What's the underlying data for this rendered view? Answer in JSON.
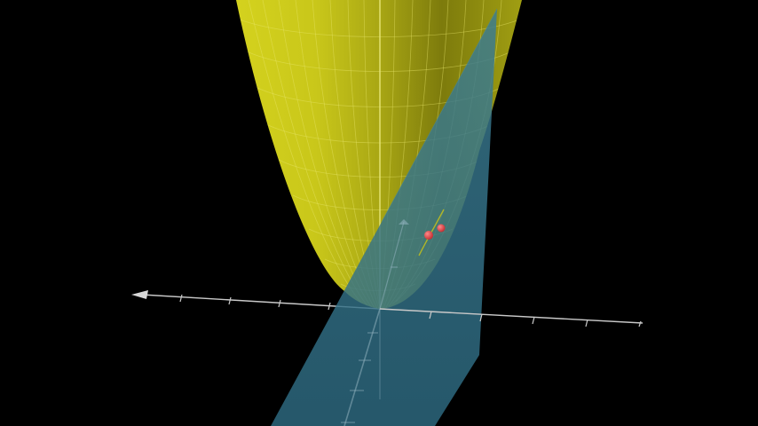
{
  "scene": {
    "background_color": "#000000",
    "surface": {
      "kind": "paraboloid",
      "color": "#c4c21a",
      "mesh_color": "#e8e66a"
    },
    "plane": {
      "kind": "plane",
      "color": "#2d6b85",
      "opacity": 0.82
    },
    "axes": {
      "color": "#c9c9c9",
      "x_axis_arrow_icon": "arrow-left-icon"
    },
    "points": {
      "color": "#e0454a",
      "count": 2
    }
  }
}
